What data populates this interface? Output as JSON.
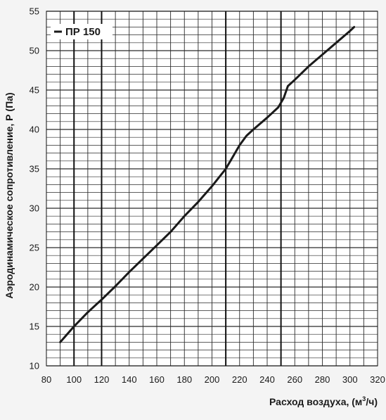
{
  "chart_data": {
    "type": "line",
    "title": "ПР 150",
    "xlabel": "Расход воздуха, (м³/ч)",
    "ylabel": "Аэродинамическое сопротивление, Р (Па)",
    "xlim": [
      80,
      320
    ],
    "ylim": [
      10,
      55
    ],
    "x_ticks": [
      80,
      100,
      120,
      140,
      160,
      180,
      200,
      220,
      240,
      260,
      280,
      300,
      320
    ],
    "y_ticks": [
      10,
      15,
      20,
      25,
      30,
      35,
      40,
      45,
      50,
      55
    ],
    "x_minor_step": 10,
    "y_minor_step": 1,
    "x_major_lines": [
      100,
      120,
      210,
      250
    ],
    "grid": true,
    "legend": "top-left",
    "colors": {
      "line": "#1a1a1a",
      "grid": "#2a2a2a",
      "background": "#ffffff",
      "page": "#f4f4f4"
    },
    "series": [
      {
        "x": [
          90,
          100,
          110,
          120,
          130,
          140,
          150,
          160,
          170,
          180,
          190,
          200,
          210,
          215,
          220,
          225,
          230,
          240,
          248,
          252,
          255,
          260,
          270,
          280,
          290,
          300,
          303
        ],
        "y": [
          13,
          15,
          16.8,
          18.4,
          20.1,
          21.9,
          23.6,
          25.3,
          27,
          29,
          30.8,
          32.8,
          35,
          36.5,
          38,
          39.2,
          40,
          41.5,
          42.8,
          44,
          45.5,
          46.3,
          48,
          49.5,
          51,
          52.5,
          53
        ]
      }
    ]
  }
}
